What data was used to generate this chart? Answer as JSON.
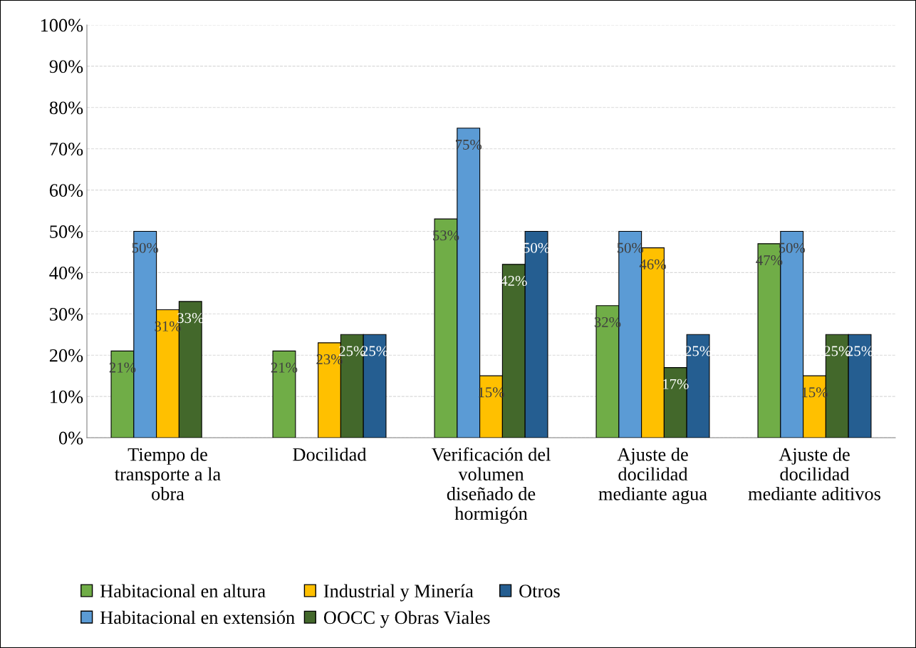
{
  "chart_data": {
    "type": "bar",
    "categories": [
      "Tiempo de\ntransporte a la\nobra",
      "Docilidad",
      "Verificación del\nvolumen\ndiseñado de\nhormigón",
      "Ajuste de\ndocilidad\nmediante agua",
      "Ajuste de\ndocilidad\nmediante aditivos"
    ],
    "series": [
      {
        "name": "Habitacional en altura",
        "color": "#70ad47",
        "values": [
          21,
          21,
          53,
          32,
          47
        ],
        "value_labels": [
          "21%",
          "21%",
          "53%",
          "32%",
          "47%"
        ]
      },
      {
        "name": "Habitacional en extensión",
        "color": "#5b9bd5",
        "values": [
          50,
          null,
          75,
          50,
          50
        ],
        "value_labels": [
          "50%",
          null,
          "75%",
          "50%",
          "50%"
        ]
      },
      {
        "name": "Industrial y Minería",
        "color": "#ffc000",
        "values": [
          31,
          23,
          15,
          46,
          15
        ],
        "value_labels": [
          "31%",
          "23%",
          "15%",
          "46%",
          "15%"
        ]
      },
      {
        "name": "OOCC y Obras Viales",
        "color": "#43682b",
        "values": [
          33,
          25,
          42,
          17,
          25
        ],
        "value_labels": [
          "33%",
          "25%",
          "42%",
          "17%",
          "25%"
        ]
      },
      {
        "name": "Otros",
        "color": "#255e91",
        "values": [
          null,
          25,
          50,
          25,
          25
        ],
        "value_labels": [
          null,
          "25%",
          "50%",
          "25%",
          "25%"
        ]
      }
    ],
    "ylim": [
      0,
      100
    ],
    "yticks": [
      {
        "value": 0,
        "label": "0%"
      },
      {
        "value": 10,
        "label": "10%"
      },
      {
        "value": 20,
        "label": "20%"
      },
      {
        "value": 30,
        "label": "30%"
      },
      {
        "value": 40,
        "label": "40%"
      },
      {
        "value": 50,
        "label": "50%"
      },
      {
        "value": 60,
        "label": "60%"
      },
      {
        "value": 70,
        "label": "70%"
      },
      {
        "value": 80,
        "label": "80%"
      },
      {
        "value": 90,
        "label": "90%"
      },
      {
        "value": 100,
        "label": "100%"
      }
    ],
    "grid": "y",
    "legend": "bottom"
  }
}
